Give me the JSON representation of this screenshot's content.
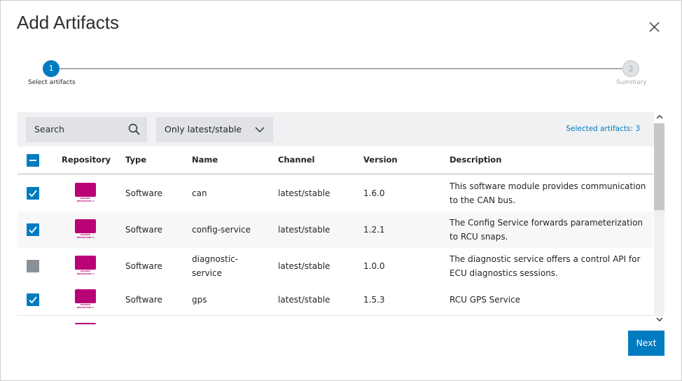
{
  "dialog": {
    "title": "Add Artifacts",
    "steps": [
      {
        "number": "1",
        "label": "Select artifacts"
      },
      {
        "number": "2",
        "label": "Summary"
      }
    ],
    "search_placeholder": "Search",
    "filter": "Only latest/stable",
    "selected_count_label": "Selected artifacts: 3",
    "columns": [
      "Repository",
      "Type",
      "Name",
      "Channel",
      "Version",
      "Description"
    ],
    "rows": [
      {
        "checked": true,
        "repository": "PRIVATE REPOSITORY 2",
        "type": "Software",
        "name": "can",
        "channel": "latest/stable",
        "version": "1.6.0",
        "description": "This software module provides communication to the CAN bus."
      },
      {
        "checked": true,
        "repository": "PRIVATE REPOSITORY 2",
        "type": "Software",
        "name": "config-service",
        "channel": "latest/stable",
        "version": "1.2.1",
        "description": "The Config Service forwards parameterization to RCU snaps."
      },
      {
        "checked": false,
        "repository": "PRIVATE REPOSITORY 2",
        "type": "Software",
        "name": "diagnostic-service",
        "channel": "latest/stable",
        "version": "1.0.0",
        "description": "The diagnostic service offers a control API for ECU diagnostics sessions."
      },
      {
        "checked": true,
        "repository": "PRIVATE REPOSITORY 2",
        "type": "Software",
        "name": "gps",
        "channel": "latest/stable",
        "version": "1.5.3",
        "description": "RCU GPS Service"
      }
    ],
    "next_button": "Next"
  }
}
